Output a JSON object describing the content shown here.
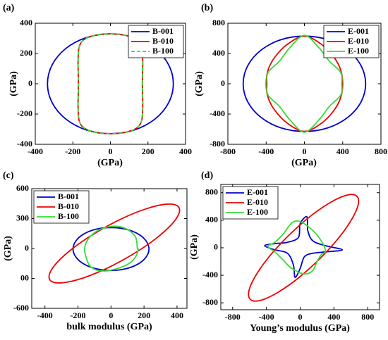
{
  "chart_data": [
    {
      "type": "line",
      "label": "(a)",
      "xlabel": "(GPa)",
      "ylabel": "(GPa)",
      "xlim": [
        -400,
        400
      ],
      "ylim": [
        -400,
        400
      ],
      "xticks": [
        -400,
        -200,
        0,
        200,
        400
      ],
      "yticks": [
        -400,
        -200,
        0,
        200,
        400
      ],
      "legend": "upper right",
      "series": [
        {
          "name": "B-001",
          "color": "#0000cc",
          "dashed": false,
          "x": [
            335,
            309.5,
            236.9,
            128.2,
            0,
            -128.2,
            -236.9,
            -309.5,
            -335,
            -309.5,
            -236.9,
            -128.2,
            0,
            128.2,
            236.9,
            309.5
          ],
          "y": [
            0,
            126.3,
            233.3,
            304.9,
            330,
            304.9,
            233.3,
            126.3,
            0,
            -126.3,
            -233.3,
            -304.9,
            -330,
            -304.9,
            -233.3,
            -126.3
          ]
        },
        {
          "name": "B-010",
          "color": "#ee0000",
          "dashed": false,
          "x": [
            170,
            172,
            165,
            130,
            60,
            0,
            -60,
            -130,
            -165,
            -172,
            -170,
            -172,
            -165,
            -130,
            -60,
            0,
            60,
            130,
            165,
            172
          ],
          "y": [
            0,
            150,
            250,
            300,
            325,
            330,
            325,
            300,
            250,
            150,
            0,
            -150,
            -250,
            -300,
            -325,
            -330,
            -325,
            -300,
            -250,
            -150
          ]
        },
        {
          "name": "B-100",
          "color": "#33dd33",
          "dashed": true,
          "x": [
            170,
            172,
            165,
            130,
            60,
            0,
            -60,
            -130,
            -165,
            -172,
            -170,
            -172,
            -165,
            -130,
            -60,
            0,
            60,
            130,
            165,
            172
          ],
          "y": [
            0,
            150,
            250,
            300,
            325,
            330,
            325,
            300,
            250,
            150,
            0,
            -150,
            -250,
            -300,
            -325,
            -330,
            -325,
            -300,
            -250,
            -150
          ]
        }
      ]
    },
    {
      "type": "line",
      "label": "(b)",
      "xlabel": "(GPa)",
      "ylabel": "(GPa)",
      "xlim": [
        -800,
        800
      ],
      "ylim": [
        -800,
        800
      ],
      "xticks": [
        -800,
        -400,
        0,
        400,
        800
      ],
      "yticks": [
        -800,
        -400,
        0,
        400,
        800
      ],
      "legend": "upper right",
      "series": [
        {
          "name": "E-001",
          "color": "#0000cc",
          "dashed": false,
          "x": [
            640,
            591,
            453,
            245,
            0,
            -245,
            -453,
            -591,
            -640,
            -591,
            -453,
            -245,
            0,
            245,
            453,
            591
          ],
          "y": [
            0,
            241,
            445,
            582,
            630,
            582,
            445,
            241,
            0,
            -241,
            -445,
            -582,
            -630,
            -582,
            -445,
            -241
          ]
        },
        {
          "name": "E-010",
          "color": "#ee0000",
          "dashed": false,
          "x": [
            400,
            380,
            310,
            180,
            0,
            -180,
            -310,
            -380,
            -400,
            -380,
            -310,
            -180,
            0,
            180,
            310,
            380
          ],
          "y": [
            0,
            180,
            350,
            520,
            630,
            520,
            350,
            180,
            0,
            -180,
            -350,
            -520,
            -630,
            -520,
            -350,
            -180
          ]
        },
        {
          "name": "E-100",
          "color": "#33dd33",
          "dashed": false,
          "x": [
            390,
            380,
            260,
            150,
            0,
            -150,
            -260,
            -380,
            -390,
            -380,
            -260,
            -150,
            0,
            150,
            260,
            380
          ],
          "y": [
            0,
            150,
            300,
            480,
            640,
            480,
            300,
            150,
            0,
            -150,
            -300,
            -480,
            -640,
            -480,
            -300,
            -150
          ]
        }
      ]
    },
    {
      "type": "line",
      "label": "(c)",
      "xlabel": "bulk modulus (GPa)",
      "ylabel": "(GPa)",
      "xlim": [
        -480,
        460
      ],
      "ylim": [
        -600,
        600
      ],
      "xticks": [
        -400,
        -200,
        0,
        200,
        400
      ],
      "yticks": [
        600,
        300,
        0,
        {
          "value": -300,
          "label": "00"
        },
        -600
      ],
      "legend": "upper left",
      "series": [
        {
          "name": "B-001",
          "color": "#0000cc",
          "dashed": false,
          "x": [
            230,
            212,
            163,
            88,
            0,
            -88,
            -163,
            -212,
            -230,
            -212,
            -163,
            -88,
            0,
            88,
            163,
            212
          ],
          "y": [
            -5,
            77,
            147,
            194,
            210,
            194,
            147,
            77,
            -5,
            -87,
            -157,
            -204,
            -220,
            -204,
            -157,
            -87
          ]
        },
        {
          "name": "B-010",
          "color": "#ee0000",
          "dashed": false,
          "x": [
            400,
            329,
            211,
            63,
            -90,
            -227,
            -327,
            -373,
            -360,
            -289,
            -171,
            -23,
            130,
            267,
            367,
            413
          ],
          "y": [
            430,
            443,
            397,
            297,
            160,
            7,
            -141,
            -259,
            -330,
            -343,
            -297,
            -197,
            -60,
            93,
            241,
            359
          ]
        },
        {
          "name": "B-100",
          "color": "#33dd33",
          "dashed": false,
          "x": [
            160,
            150,
            110,
            50,
            -20,
            -90,
            -140,
            -160,
            -150,
            -130,
            -90,
            -30,
            40,
            110,
            150,
            165
          ],
          "y": [
            0,
            110,
            180,
            220,
            215,
            170,
            90,
            0,
            -90,
            -170,
            -215,
            -225,
            -200,
            -150,
            -80,
            -10
          ]
        }
      ]
    },
    {
      "type": "line",
      "label": "(d)",
      "xlabel": "Young’s modulus (GPa)",
      "ylabel": "(GPa)",
      "xlim": [
        -940,
        940
      ],
      "ylim": [
        -900,
        920
      ],
      "xticks": [
        -800,
        -400,
        0,
        400,
        800
      ],
      "yticks": [
        800,
        400,
        0,
        -400,
        -800
      ],
      "legend": "upper left",
      "series": [
        {
          "name": "E-001",
          "color": "#0000cc",
          "dashed": false,
          "x": [
            500,
            300,
            150,
            90,
            80,
            0,
            -20,
            -150,
            -300,
            -420,
            -300,
            -150,
            -80,
            -60,
            0,
            50,
            150,
            300
          ],
          "y": [
            -30,
            30,
            100,
            250,
            450,
            350,
            150,
            80,
            60,
            30,
            -30,
            -80,
            -250,
            -430,
            -300,
            -130,
            -80,
            -60
          ]
        },
        {
          "name": "E-010",
          "color": "#ee0000",
          "dashed": false,
          "x": [
            660,
            536,
            337,
            92,
            -160,
            -382,
            -539,
            -610,
            -580,
            -456,
            -257,
            -12,
            240,
            462,
            619,
            690
          ],
          "y": [
            760,
            759,
            643,
            430,
            150,
            -152,
            -431,
            -645,
            -760,
            -759,
            -643,
            -430,
            -150,
            152,
            431,
            645
          ]
        },
        {
          "name": "E-100",
          "color": "#33dd33",
          "dashed": false,
          "x": [
            300,
            250,
            150,
            0,
            -100,
            -200,
            -300,
            -380,
            -300,
            -200,
            -100,
            50,
            150,
            200,
            250
          ],
          "y": [
            -50,
            100,
            250,
            380,
            360,
            200,
            80,
            20,
            -60,
            -180,
            -300,
            -380,
            -330,
            -200,
            -100
          ]
        }
      ]
    }
  ]
}
